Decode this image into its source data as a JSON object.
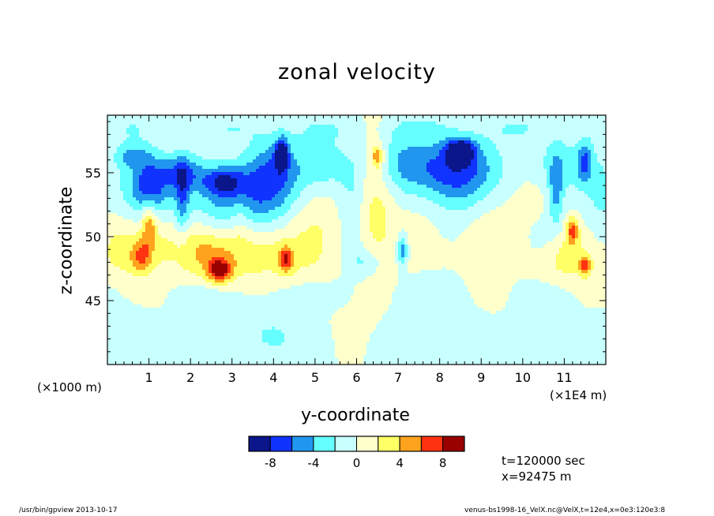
{
  "chart_data": {
    "type": "heatmap",
    "title": "zonal velocity",
    "xlabel": "y-coordinate",
    "ylabel": "z-coordinate",
    "x_unit_left": "(×1000 m)",
    "x_unit_right": "(×1E4 m)",
    "xlim": [
      0,
      12
    ],
    "ylim": [
      40,
      59.5
    ],
    "x_ticks": [
      1,
      2,
      3,
      4,
      5,
      6,
      7,
      8,
      9,
      10,
      11
    ],
    "y_ticks": [
      45,
      50,
      55
    ],
    "colorbar": {
      "levels": [
        -10,
        -8,
        -6,
        -4,
        -2,
        0,
        2,
        4,
        6,
        8,
        10
      ],
      "tick_labels": [
        "-8",
        "-4",
        "0",
        "4",
        "8"
      ],
      "tick_values": [
        -8,
        -4,
        0,
        4,
        8
      ],
      "colors": [
        "#0a168a",
        "#1133ff",
        "#2196ee",
        "#66ffff",
        "#c8ffff",
        "#ffffcc",
        "#ffff66",
        "#ffa31e",
        "#ff3311",
        "#990000"
      ]
    },
    "features": [
      {
        "y": 2.7,
        "z": 47.3,
        "value": 8.5
      },
      {
        "y": 8.5,
        "z": 56.7,
        "value": -9.5
      },
      {
        "y": 11.5,
        "z": 47.7,
        "value": 6.5
      },
      {
        "y": 11.2,
        "z": 50.5,
        "value": 6.0
      },
      {
        "y": 6.5,
        "z": 56.3,
        "value": 5.5
      },
      {
        "y": 4.3,
        "z": 48.2,
        "value": 6.0
      },
      {
        "y": 1.0,
        "z": 51.0,
        "value": 5.5
      },
      {
        "y": 0.8,
        "z": 48.5,
        "value": 5.0
      },
      {
        "y": 4.2,
        "z": 56.5,
        "value": -9.0
      },
      {
        "y": 2.8,
        "z": 54.3,
        "value": -6.0
      },
      {
        "y": 7.1,
        "z": 49.0,
        "value": -5.5
      }
    ]
  },
  "annotations": {
    "time": "t=120000 sec",
    "position": "x=92475 m"
  },
  "footer": {
    "left": "/usr/bin/gpview   2013-10-17",
    "right": "venus-bs1998-16_VelX.nc@VelX,t=12e4,x=0e3:120e3:8"
  }
}
